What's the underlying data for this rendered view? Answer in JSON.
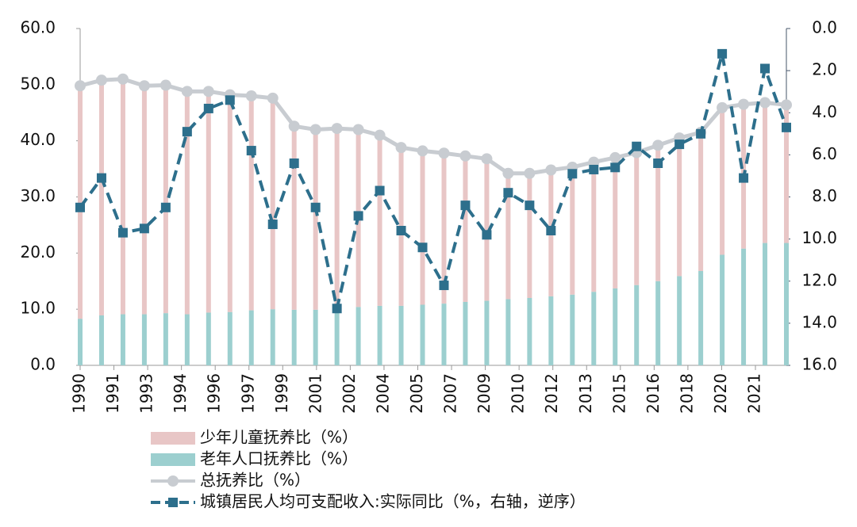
{
  "chart_data": {
    "type": "bar-line",
    "xticks": [
      "1990",
      "1991",
      "1993",
      "1994",
      "1996",
      "1997",
      "1999",
      "2001",
      "2002",
      "2004",
      "2005",
      "2007",
      "2009",
      "2010",
      "2012",
      "2013",
      "2015",
      "2016",
      "2018",
      "2020",
      "2021"
    ],
    "ylim": [
      0,
      60
    ],
    "yticks": [
      {
        "value": 0,
        "label": "0.0"
      },
      {
        "value": 10,
        "label": "10.0"
      },
      {
        "value": 20,
        "label": "20.0"
      },
      {
        "value": 30,
        "label": "30.0"
      },
      {
        "value": 40,
        "label": "40.0"
      },
      {
        "value": 50,
        "label": "50.0"
      },
      {
        "value": 60,
        "label": "60.0"
      }
    ],
    "y2lim": [
      0,
      16
    ],
    "y2_reversed": true,
    "y2ticks": [
      {
        "value": 0,
        "label": "0.0"
      },
      {
        "value": 2,
        "label": "2.0"
      },
      {
        "value": 4,
        "label": "4.0"
      },
      {
        "value": 6,
        "label": "6.0"
      },
      {
        "value": 8,
        "label": "8.0"
      },
      {
        "value": 10,
        "label": "10.0"
      },
      {
        "value": 12,
        "label": "12.0"
      },
      {
        "value": 14,
        "label": "14.0"
      },
      {
        "value": 16,
        "label": "16.0"
      }
    ],
    "series": [
      {
        "name": "少年儿童抚养比（%）",
        "type": "bar",
        "stack": true,
        "color": "#e8c6c6",
        "values": [
          41.5,
          41.9,
          41.9,
          40.7,
          40.6,
          39.7,
          39.4,
          38.7,
          38.2,
          37.6,
          32.7,
          32.1,
          32.1,
          31.6,
          30.4,
          28.2,
          27.4,
          26.8,
          26.0,
          25.3,
          22.4,
          22.2,
          22.5,
          22.7,
          23.1,
          23.3,
          23.6,
          24.2,
          24.6,
          24.7,
          26.2,
          25.7,
          25.0,
          24.6
        ]
      },
      {
        "name": "老年人口抚养比（%）",
        "type": "bar",
        "stack": true,
        "color": "#9ccfcf",
        "values": [
          8.3,
          8.9,
          9.1,
          9.1,
          9.3,
          9.1,
          9.4,
          9.5,
          9.8,
          10.0,
          9.9,
          9.9,
          10.1,
          10.4,
          10.6,
          10.6,
          10.8,
          11.0,
          11.3,
          11.5,
          11.8,
          12.0,
          12.3,
          12.6,
          13.1,
          13.7,
          14.3,
          15.0,
          15.9,
          16.8,
          19.7,
          20.8,
          21.8,
          21.8
        ]
      },
      {
        "name": "总抚养比（%）",
        "type": "line",
        "color": "#c8ccd1",
        "marker": "circle",
        "values": [
          49.8,
          50.8,
          51.0,
          49.8,
          49.9,
          48.8,
          48.8,
          48.2,
          48.0,
          47.6,
          42.6,
          42.0,
          42.2,
          42.0,
          41.0,
          38.8,
          38.2,
          37.8,
          37.3,
          36.8,
          34.2,
          34.2,
          34.8,
          35.3,
          36.2,
          37.0,
          37.9,
          39.2,
          40.5,
          41.5,
          45.9,
          46.5,
          46.8,
          46.4
        ]
      },
      {
        "name": "城镇居民人均可支配收入:实际同比（%，右轴，逆序）",
        "type": "line",
        "axis": "y2",
        "dashed": true,
        "color": "#2d6f8c",
        "marker": "square",
        "values": [
          8.5,
          7.1,
          9.7,
          9.5,
          8.5,
          4.9,
          3.8,
          3.4,
          5.8,
          9.3,
          6.4,
          8.5,
          13.3,
          8.9,
          7.7,
          9.6,
          10.4,
          12.2,
          8.4,
          9.8,
          7.8,
          8.4,
          9.6,
          6.9,
          6.7,
          6.6,
          5.6,
          6.4,
          5.5,
          5.0,
          1.2,
          7.1,
          1.9,
          4.7
        ]
      }
    ]
  }
}
